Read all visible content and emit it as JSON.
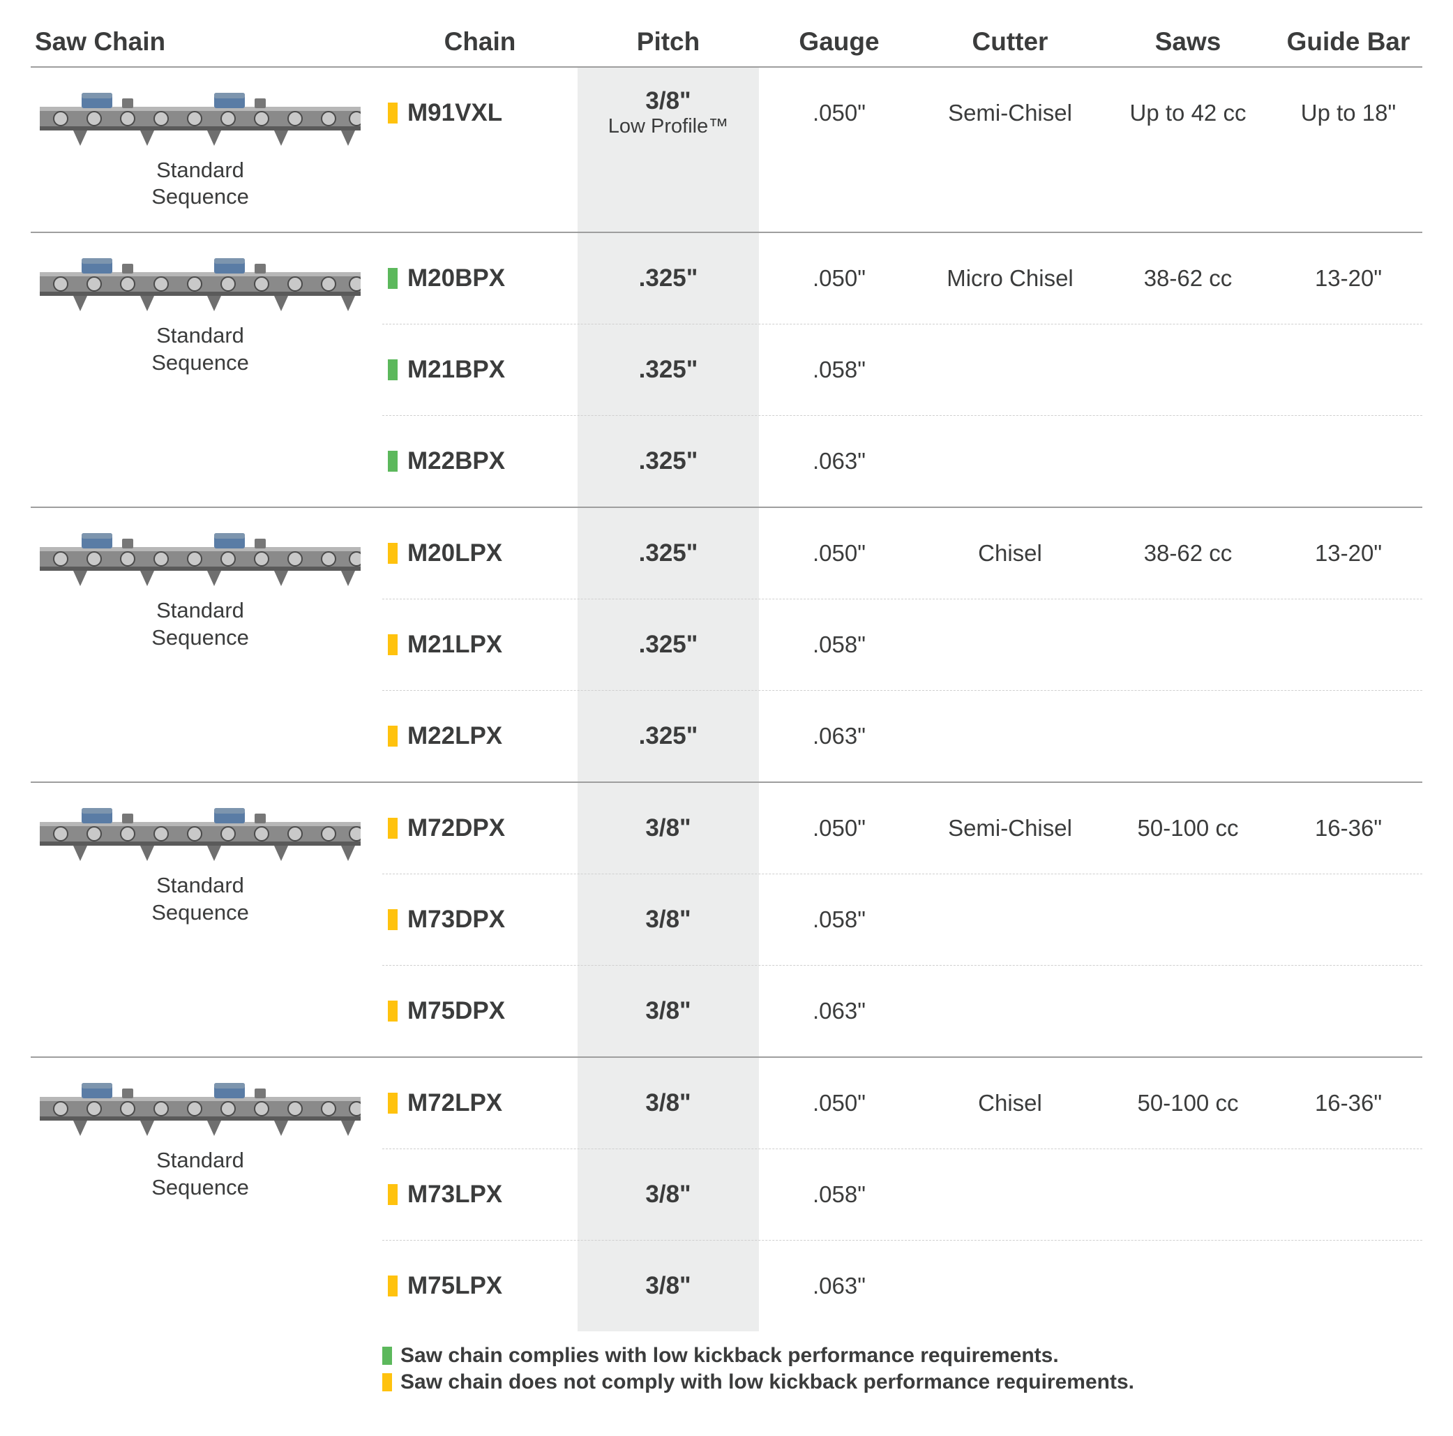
{
  "colors": {
    "text": "#3b3c3c",
    "rule": "#9e9e9e",
    "rule_light": "#cfcfcf",
    "pitch_bg": "#eceded",
    "green": "#5cb85c",
    "yellow": "#ffc20e"
  },
  "columns": [
    "Saw Chain",
    "Chain",
    "Pitch",
    "Gauge",
    "Cutter",
    "Saws",
    "Guide Bar"
  ],
  "image_caption": "Standard Sequence",
  "groups": [
    {
      "cutter": "Semi-Chisel",
      "saws": "Up to 42 cc",
      "bar": "Up to 18\"",
      "chains": [
        {
          "code": "M91VXL",
          "swatch": "yellow",
          "pitch": "3/8\"",
          "pitch_sub": "Low Profile™",
          "gauge": ".050\""
        }
      ]
    },
    {
      "cutter": "Micro Chisel",
      "saws": "38-62 cc",
      "bar": "13-20\"",
      "chains": [
        {
          "code": "M20BPX",
          "swatch": "green",
          "pitch": ".325\"",
          "gauge": ".050\""
        },
        {
          "code": "M21BPX",
          "swatch": "green",
          "pitch": ".325\"",
          "gauge": ".058\""
        },
        {
          "code": "M22BPX",
          "swatch": "green",
          "pitch": ".325\"",
          "gauge": ".063\""
        }
      ]
    },
    {
      "cutter": "Chisel",
      "saws": "38-62 cc",
      "bar": "13-20\"",
      "chains": [
        {
          "code": "M20LPX",
          "swatch": "yellow",
          "pitch": ".325\"",
          "gauge": ".050\""
        },
        {
          "code": "M21LPX",
          "swatch": "yellow",
          "pitch": ".325\"",
          "gauge": ".058\""
        },
        {
          "code": "M22LPX",
          "swatch": "yellow",
          "pitch": ".325\"",
          "gauge": ".063\""
        }
      ]
    },
    {
      "cutter": "Semi-Chisel",
      "saws": "50-100 cc",
      "bar": "16-36\"",
      "chains": [
        {
          "code": "M72DPX",
          "swatch": "yellow",
          "pitch": "3/8\"",
          "gauge": ".050\""
        },
        {
          "code": "M73DPX",
          "swatch": "yellow",
          "pitch": "3/8\"",
          "gauge": ".058\""
        },
        {
          "code": "M75DPX",
          "swatch": "yellow",
          "pitch": "3/8\"",
          "gauge": ".063\""
        }
      ]
    },
    {
      "cutter": "Chisel",
      "saws": "50-100 cc",
      "bar": "16-36\"",
      "chains": [
        {
          "code": "M72LPX",
          "swatch": "yellow",
          "pitch": "3/8\"",
          "gauge": ".050\""
        },
        {
          "code": "M73LPX",
          "swatch": "yellow",
          "pitch": "3/8\"",
          "gauge": ".058\""
        },
        {
          "code": "M75LPX",
          "swatch": "yellow",
          "pitch": "3/8\"",
          "gauge": ".063\""
        }
      ]
    }
  ],
  "legend": {
    "green": "Saw chain complies with low kickback performance requirements.",
    "yellow": "Saw chain does not comply with low kickback performance requirements."
  }
}
